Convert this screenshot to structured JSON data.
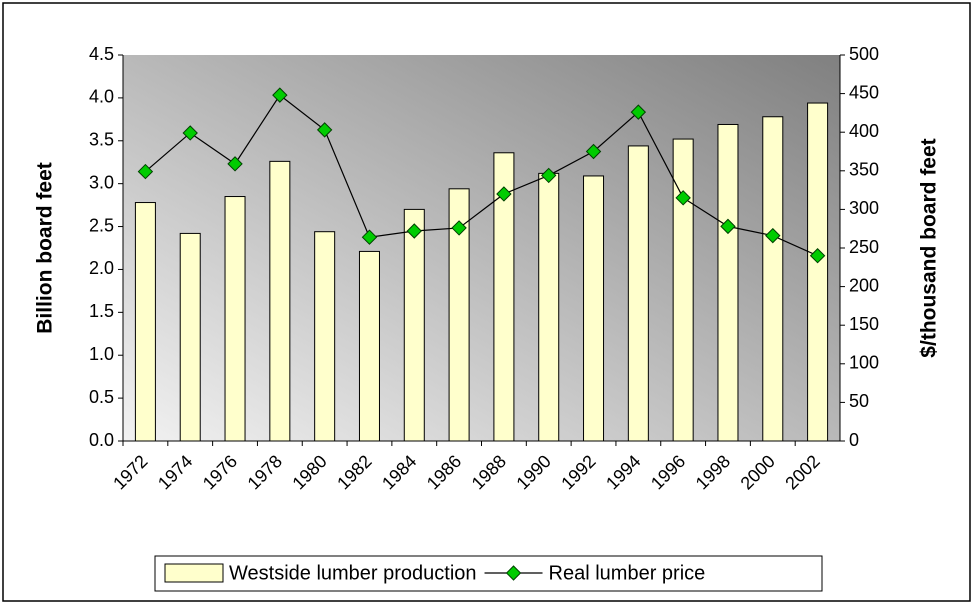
{
  "chart_data": {
    "type": "bar-line",
    "y_label": "Billion board feet",
    "y2_label": "$/thousand board feet",
    "categories": [
      "1972",
      "1974",
      "1976",
      "1978",
      "1980",
      "1982",
      "1984",
      "1986",
      "1988",
      "1990",
      "1992",
      "1994",
      "1996",
      "1998",
      "2000",
      "2002"
    ],
    "series": [
      {
        "name": "Westside lumber production",
        "type": "bar",
        "color": "#ffffcc",
        "values": [
          2.78,
          2.42,
          2.85,
          3.26,
          2.44,
          2.21,
          2.7,
          2.94,
          3.36,
          3.12,
          3.09,
          3.44,
          3.52,
          3.69,
          3.78,
          3.94
        ]
      },
      {
        "name": "Real lumber price",
        "type": "line",
        "axis": "y2",
        "color": "#00cc00",
        "values": [
          349,
          399,
          359,
          448,
          403,
          264,
          272,
          276,
          320,
          344,
          375,
          426,
          315,
          278,
          266,
          240
        ]
      }
    ],
    "ylim": [
      0,
      4.5
    ],
    "yticks": [
      {
        "value": 0,
        "label": "0.0"
      },
      0.5,
      {
        "value": 1,
        "label": "1.0"
      },
      1.5,
      {
        "value": 2,
        "label": "2.0"
      },
      2.5,
      {
        "value": 3,
        "label": "3.0"
      },
      3.5,
      {
        "value": 4,
        "label": "4.0"
      },
      4.5
    ],
    "y2lim": [
      0,
      500
    ],
    "y2ticks": [
      0,
      50,
      100,
      150,
      200,
      250,
      300,
      350,
      400,
      450,
      500
    ],
    "legend": "bottom"
  }
}
